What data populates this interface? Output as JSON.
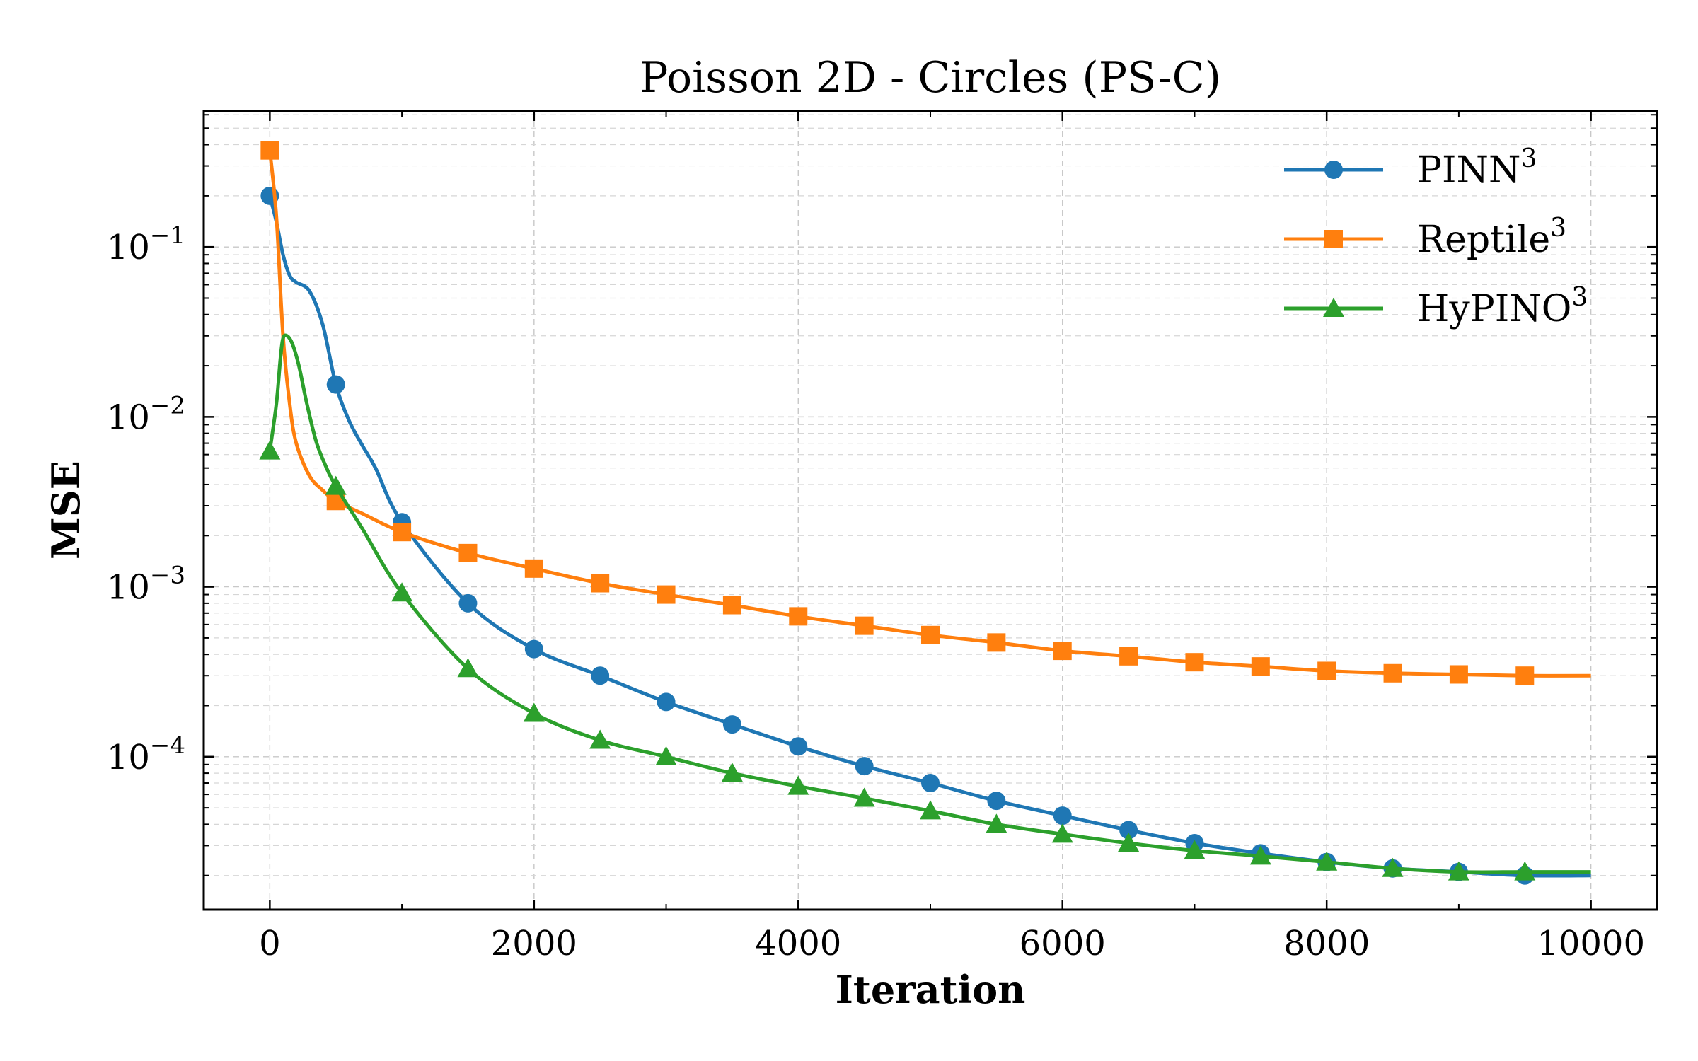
{
  "chart_data": {
    "type": "line",
    "title": "Poisson 2D - Circles (PS-C)",
    "xlabel": "Iteration",
    "ylabel": "MSE",
    "xlim": [
      -500,
      10500
    ],
    "ylim_log10": [
      -4.9,
      -0.2
    ],
    "yscale": "log",
    "grid": true,
    "legend_position": "top-right",
    "x_ticks": [
      0,
      2000,
      4000,
      6000,
      8000,
      10000
    ],
    "x_tick_labels": [
      "0",
      "2000",
      "4000",
      "6000",
      "8000",
      "10000"
    ],
    "y_ticks": [
      -4,
      -3,
      -2,
      -1
    ],
    "y_tick_labels": [
      {
        "base": "10",
        "exp": "−4"
      },
      {
        "base": "10",
        "exp": "−3"
      },
      {
        "base": "10",
        "exp": "−2"
      },
      {
        "base": "10",
        "exp": "−1"
      }
    ],
    "series": [
      {
        "name": "PINN",
        "superscript": "3",
        "color": "#1f77b4",
        "marker": "circle",
        "markers_x": [
          0,
          500,
          1000,
          1500,
          2000,
          2500,
          3000,
          3500,
          4000,
          4500,
          5000,
          5500,
          6000,
          6500,
          7000,
          7500,
          8000,
          8500,
          9000,
          9500
        ],
        "markers_y": [
          0.2,
          0.0155,
          0.0024,
          0.0008,
          0.00043,
          0.0003,
          0.00021,
          0.000155,
          0.000115,
          8.8e-05,
          7e-05,
          5.5e-05,
          4.5e-05,
          3.7e-05,
          3.1e-05,
          2.7e-05,
          2.4e-05,
          2.2e-05,
          2.1e-05,
          2e-05
        ],
        "curve_x": [
          0,
          50,
          100,
          150,
          200,
          300,
          400,
          500,
          600,
          700,
          800,
          1000,
          1500,
          2000,
          2500,
          3000,
          3500,
          4000,
          4500,
          5000,
          5500,
          6000,
          6500,
          7000,
          7500,
          8000,
          8500,
          9000,
          9500,
          10000
        ],
        "curve_y": [
          0.2,
          0.14,
          0.09,
          0.068,
          0.062,
          0.055,
          0.035,
          0.0155,
          0.0095,
          0.0068,
          0.005,
          0.0024,
          0.0008,
          0.00043,
          0.0003,
          0.00021,
          0.000155,
          0.000115,
          8.8e-05,
          7e-05,
          5.5e-05,
          4.5e-05,
          3.7e-05,
          3.1e-05,
          2.7e-05,
          2.4e-05,
          2.2e-05,
          2.1e-05,
          2e-05,
          2e-05
        ]
      },
      {
        "name": "Reptile",
        "superscript": "3",
        "color": "#ff7f0e",
        "marker": "square",
        "markers_x": [
          0,
          500,
          1000,
          1500,
          2000,
          2500,
          3000,
          3500,
          4000,
          4500,
          5000,
          5500,
          6000,
          6500,
          7000,
          7500,
          8000,
          8500,
          9000,
          9500
        ],
        "markers_y": [
          0.37,
          0.0032,
          0.0021,
          0.00158,
          0.00128,
          0.00105,
          0.0009,
          0.00078,
          0.00067,
          0.00059,
          0.00052,
          0.00047,
          0.00042,
          0.00039,
          0.00036,
          0.00034,
          0.00032,
          0.00031,
          0.000305,
          0.0003
        ],
        "curve_x": [
          0,
          50,
          100,
          150,
          200,
          300,
          400,
          500,
          700,
          1000,
          1500,
          2000,
          2500,
          3000,
          3500,
          4000,
          4500,
          5000,
          5500,
          6000,
          6500,
          7000,
          7500,
          8000,
          8500,
          9000,
          9500,
          10000
        ],
        "curve_y": [
          0.37,
          0.15,
          0.03,
          0.012,
          0.007,
          0.0045,
          0.0037,
          0.0032,
          0.0027,
          0.0021,
          0.00158,
          0.00128,
          0.00105,
          0.0009,
          0.00078,
          0.00067,
          0.00059,
          0.00052,
          0.00047,
          0.00042,
          0.00039,
          0.00036,
          0.00034,
          0.00032,
          0.00031,
          0.000305,
          0.0003,
          0.0003
        ]
      },
      {
        "name": "HyPINO",
        "superscript": "3",
        "color": "#2ca02c",
        "marker": "triangle",
        "markers_x": [
          0,
          500,
          1000,
          1500,
          2000,
          2500,
          3000,
          3500,
          4000,
          4500,
          5000,
          5500,
          6000,
          6500,
          7000,
          7500,
          8000,
          8500,
          9000,
          9500
        ],
        "markers_y": [
          0.0063,
          0.0039,
          0.00092,
          0.00033,
          0.00018,
          0.000125,
          0.0001,
          8e-05,
          6.7e-05,
          5.7e-05,
          4.8e-05,
          4e-05,
          3.5e-05,
          3.1e-05,
          2.8e-05,
          2.6e-05,
          2.4e-05,
          2.2e-05,
          2.1e-05,
          2.1e-05
        ],
        "curve_x": [
          0,
          50,
          80,
          100,
          130,
          170,
          220,
          280,
          350,
          420,
          500,
          700,
          1000,
          1500,
          2000,
          2500,
          3000,
          3500,
          4000,
          4500,
          5000,
          5500,
          6000,
          6500,
          7000,
          7500,
          8000,
          8500,
          9000,
          9500,
          10000
        ],
        "curve_y": [
          0.0063,
          0.012,
          0.022,
          0.029,
          0.03,
          0.027,
          0.02,
          0.012,
          0.0072,
          0.0052,
          0.0039,
          0.0022,
          0.00092,
          0.00033,
          0.00018,
          0.000125,
          0.0001,
          8e-05,
          6.7e-05,
          5.7e-05,
          4.8e-05,
          4e-05,
          3.5e-05,
          3.1e-05,
          2.8e-05,
          2.6e-05,
          2.4e-05,
          2.2e-05,
          2.1e-05,
          2.1e-05,
          2.1e-05
        ]
      }
    ]
  }
}
